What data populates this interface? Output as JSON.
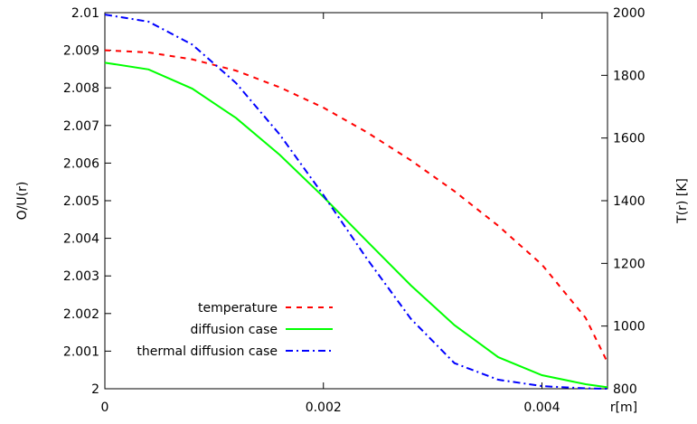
{
  "chart_data": {
    "type": "line",
    "xlabel": "r[m]",
    "ylabel": "O/U(r)",
    "y2label": "T(r) [K]",
    "xlim": [
      0,
      0.0046
    ],
    "ylim": [
      2.0,
      2.01
    ],
    "y2lim": [
      800,
      2000
    ],
    "xticks": [
      0,
      0.002,
      0.004
    ],
    "xtick_labels": [
      "0",
      "0.002",
      "0.004"
    ],
    "yticks": [
      2.0,
      2.001,
      2.002,
      2.003,
      2.004,
      2.005,
      2.006,
      2.007,
      2.008,
      2.009,
      2.01
    ],
    "ytick_labels": [
      "2",
      "2.001",
      "2.002",
      "2.003",
      "2.004",
      "2.005",
      "2.006",
      "2.007",
      "2.008",
      "2.009",
      "2.01"
    ],
    "y2ticks": [
      800,
      1000,
      1200,
      1400,
      1600,
      1800,
      2000
    ],
    "y2tick_labels": [
      "800",
      "1000",
      "1200",
      "1400",
      "1600",
      "1800",
      "2000"
    ],
    "grid": false,
    "legend_position": "bottom-left",
    "series": [
      {
        "name": "temperature",
        "axis": "right",
        "color": "#ff0000",
        "style": "dashed",
        "x": [
          0,
          0.0004,
          0.0008,
          0.0012,
          0.0016,
          0.002,
          0.0024,
          0.0028,
          0.0032,
          0.0036,
          0.004,
          0.0044,
          0.0046
        ],
        "y": [
          1880,
          1873,
          1851,
          1815,
          1762,
          1697,
          1618,
          1529,
          1430,
          1320,
          1196,
          1026,
          884
        ]
      },
      {
        "name": "diffusion case",
        "axis": "left",
        "color": "#00ff00",
        "style": "solid",
        "x": [
          0,
          0.0004,
          0.0008,
          0.0012,
          0.0016,
          0.002,
          0.0024,
          0.0028,
          0.0032,
          0.0036,
          0.004,
          0.0044,
          0.0046
        ],
        "y": [
          2.00867,
          2.00849,
          2.00798,
          2.0072,
          2.00622,
          2.0051,
          2.00392,
          2.00275,
          2.00169,
          2.00084,
          2.00036,
          2.00012,
          2.00004
        ]
      },
      {
        "name": "thermal diffusion case",
        "axis": "left",
        "color": "#0000ff",
        "style": "dash-dot",
        "x": [
          0,
          0.0004,
          0.0008,
          0.0012,
          0.0016,
          0.002,
          0.0024,
          0.0028,
          0.0032,
          0.0036,
          0.004,
          0.0044,
          0.0046
        ],
        "y": [
          2.00995,
          2.00976,
          2.00915,
          2.00813,
          2.00676,
          2.00515,
          2.00345,
          2.00186,
          2.00068,
          2.00024,
          2.00007,
          2.00001,
          2.0
        ]
      }
    ]
  }
}
